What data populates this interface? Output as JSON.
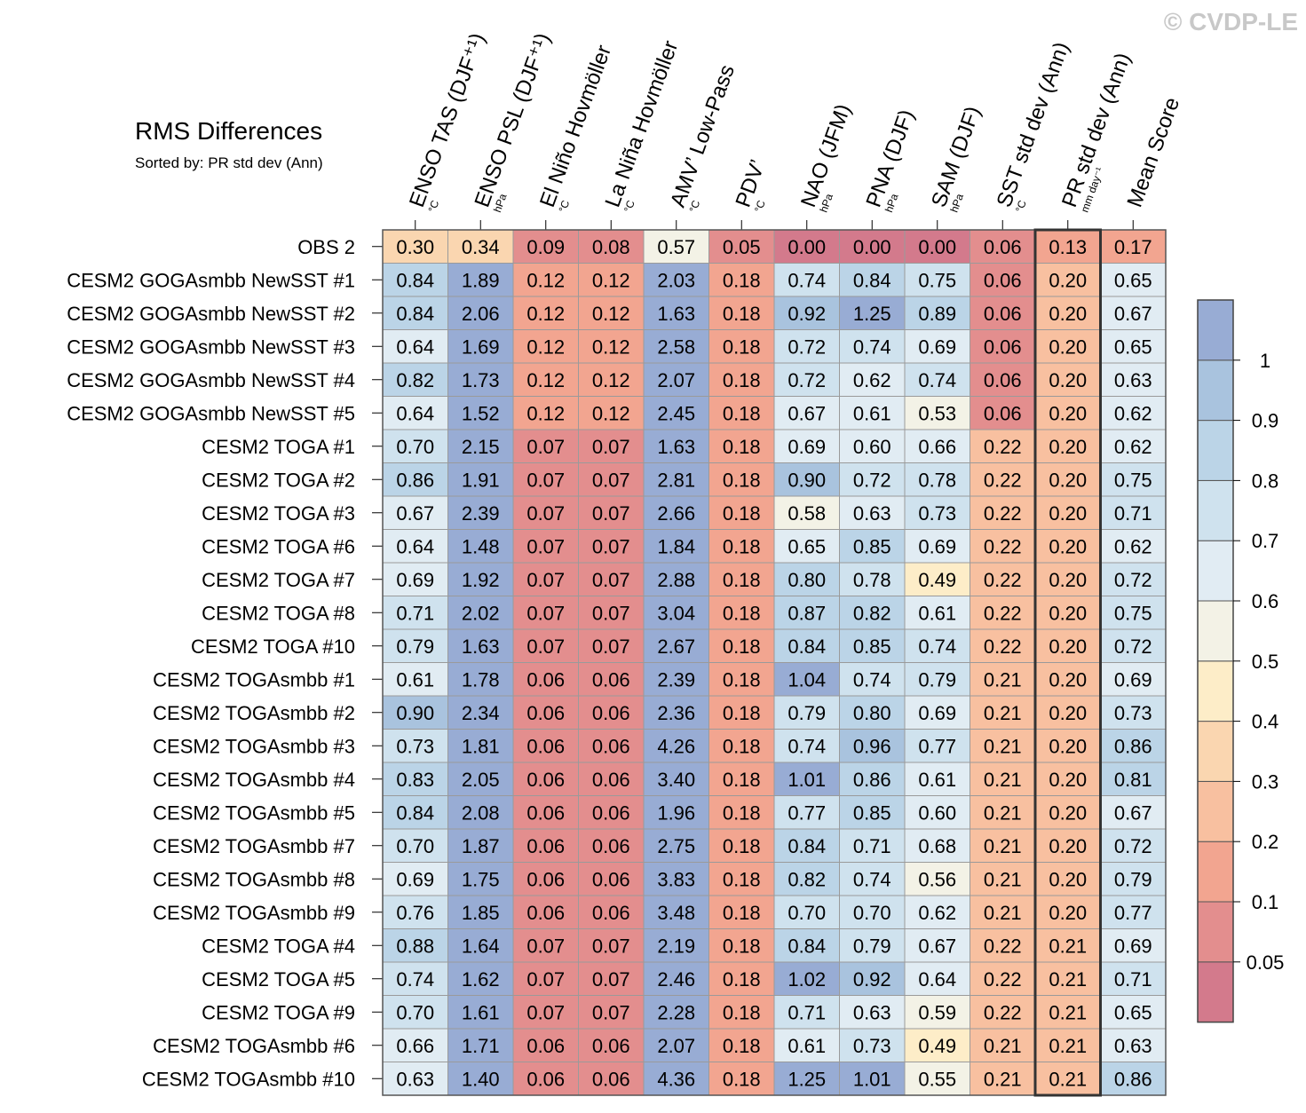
{
  "watermark": "© CVDP-LE",
  "chart_data": {
    "type": "heatmap",
    "title": "RMS Differences",
    "subtitle": "Sorted by: PR std dev (Ann)",
    "columns": [
      {
        "label": "ENSO TAS (DJF⁺¹)",
        "unit": "°C"
      },
      {
        "label": "ENSO PSL (DJF⁺¹)",
        "unit": "hPa"
      },
      {
        "label": "El Niño Hovmöller",
        "unit": "°C"
      },
      {
        "label": "La Niña Hovmöller",
        "unit": "°C"
      },
      {
        "label": "AMV’ Low-Pass",
        "unit": "°C"
      },
      {
        "label": "PDV’",
        "unit": "°C"
      },
      {
        "label": "NAO (JFM)",
        "unit": "hPa"
      },
      {
        "label": "PNA (DJF)",
        "unit": "hPa"
      },
      {
        "label": "SAM (DJF)",
        "unit": "hPa"
      },
      {
        "label": "SST std dev (Ann)",
        "unit": "°C"
      },
      {
        "label": "PR std dev (Ann)",
        "unit": "mm day⁻¹"
      },
      {
        "label": "Mean Score",
        "unit": ""
      }
    ],
    "highlight_column": 10,
    "rows": [
      "OBS 2",
      "CESM2 GOGAsmbb NewSST #1",
      "CESM2 GOGAsmbb NewSST #2",
      "CESM2 GOGAsmbb NewSST #3",
      "CESM2 GOGAsmbb NewSST #4",
      "CESM2 GOGAsmbb NewSST #5",
      "CESM2 TOGA #1",
      "CESM2 TOGA #2",
      "CESM2 TOGA #3",
      "CESM2 TOGA #6",
      "CESM2 TOGA #7",
      "CESM2 TOGA #8",
      "CESM2 TOGA #10",
      "CESM2 TOGAsmbb #1",
      "CESM2 TOGAsmbb #2",
      "CESM2 TOGAsmbb #3",
      "CESM2 TOGAsmbb #4",
      "CESM2 TOGAsmbb #5",
      "CESM2 TOGAsmbb #7",
      "CESM2 TOGAsmbb #8",
      "CESM2 TOGAsmbb #9",
      "CESM2 TOGA #4",
      "CESM2 TOGA #5",
      "CESM2 TOGA #9",
      "CESM2 TOGAsmbb #6",
      "CESM2 TOGAsmbb #10"
    ],
    "values": [
      [
        "0.30",
        "0.34",
        "0.09",
        "0.08",
        "0.57",
        "0.05",
        "0.00",
        "0.00",
        "0.00",
        "0.06",
        "0.13",
        "0.17"
      ],
      [
        "0.84",
        "1.89",
        "0.12",
        "0.12",
        "2.03",
        "0.18",
        "0.74",
        "0.84",
        "0.75",
        "0.06",
        "0.20",
        "0.65"
      ],
      [
        "0.84",
        "2.06",
        "0.12",
        "0.12",
        "1.63",
        "0.18",
        "0.92",
        "1.25",
        "0.89",
        "0.06",
        "0.20",
        "0.67"
      ],
      [
        "0.64",
        "1.69",
        "0.12",
        "0.12",
        "2.58",
        "0.18",
        "0.72",
        "0.74",
        "0.69",
        "0.06",
        "0.20",
        "0.65"
      ],
      [
        "0.82",
        "1.73",
        "0.12",
        "0.12",
        "2.07",
        "0.18",
        "0.72",
        "0.62",
        "0.74",
        "0.06",
        "0.20",
        "0.63"
      ],
      [
        "0.64",
        "1.52",
        "0.12",
        "0.12",
        "2.45",
        "0.18",
        "0.67",
        "0.61",
        "0.53",
        "0.06",
        "0.20",
        "0.62"
      ],
      [
        "0.70",
        "2.15",
        "0.07",
        "0.07",
        "1.63",
        "0.18",
        "0.69",
        "0.60",
        "0.66",
        "0.22",
        "0.20",
        "0.62"
      ],
      [
        "0.86",
        "1.91",
        "0.07",
        "0.07",
        "2.81",
        "0.18",
        "0.90",
        "0.72",
        "0.78",
        "0.22",
        "0.20",
        "0.75"
      ],
      [
        "0.67",
        "2.39",
        "0.07",
        "0.07",
        "2.66",
        "0.18",
        "0.58",
        "0.63",
        "0.73",
        "0.22",
        "0.20",
        "0.71"
      ],
      [
        "0.64",
        "1.48",
        "0.07",
        "0.07",
        "1.84",
        "0.18",
        "0.65",
        "0.85",
        "0.69",
        "0.22",
        "0.20",
        "0.62"
      ],
      [
        "0.69",
        "1.92",
        "0.07",
        "0.07",
        "2.88",
        "0.18",
        "0.80",
        "0.78",
        "0.49",
        "0.22",
        "0.20",
        "0.72"
      ],
      [
        "0.71",
        "2.02",
        "0.07",
        "0.07",
        "3.04",
        "0.18",
        "0.87",
        "0.82",
        "0.61",
        "0.22",
        "0.20",
        "0.75"
      ],
      [
        "0.79",
        "1.63",
        "0.07",
        "0.07",
        "2.67",
        "0.18",
        "0.84",
        "0.85",
        "0.74",
        "0.22",
        "0.20",
        "0.72"
      ],
      [
        "0.61",
        "1.78",
        "0.06",
        "0.06",
        "2.39",
        "0.18",
        "1.04",
        "0.74",
        "0.79",
        "0.21",
        "0.20",
        "0.69"
      ],
      [
        "0.90",
        "2.34",
        "0.06",
        "0.06",
        "2.36",
        "0.18",
        "0.79",
        "0.80",
        "0.69",
        "0.21",
        "0.20",
        "0.73"
      ],
      [
        "0.73",
        "1.81",
        "0.06",
        "0.06",
        "4.26",
        "0.18",
        "0.74",
        "0.96",
        "0.77",
        "0.21",
        "0.20",
        "0.86"
      ],
      [
        "0.83",
        "2.05",
        "0.06",
        "0.06",
        "3.40",
        "0.18",
        "1.01",
        "0.86",
        "0.61",
        "0.21",
        "0.20",
        "0.81"
      ],
      [
        "0.84",
        "2.08",
        "0.06",
        "0.06",
        "1.96",
        "0.18",
        "0.77",
        "0.85",
        "0.60",
        "0.21",
        "0.20",
        "0.67"
      ],
      [
        "0.70",
        "1.87",
        "0.06",
        "0.06",
        "2.75",
        "0.18",
        "0.84",
        "0.71",
        "0.68",
        "0.21",
        "0.20",
        "0.72"
      ],
      [
        "0.69",
        "1.75",
        "0.06",
        "0.06",
        "3.83",
        "0.18",
        "0.82",
        "0.74",
        "0.56",
        "0.21",
        "0.20",
        "0.79"
      ],
      [
        "0.76",
        "1.85",
        "0.06",
        "0.06",
        "3.48",
        "0.18",
        "0.70",
        "0.70",
        "0.62",
        "0.21",
        "0.20",
        "0.77"
      ],
      [
        "0.88",
        "1.64",
        "0.07",
        "0.07",
        "2.19",
        "0.18",
        "0.84",
        "0.79",
        "0.67",
        "0.22",
        "0.21",
        "0.69"
      ],
      [
        "0.74",
        "1.62",
        "0.07",
        "0.07",
        "2.46",
        "0.18",
        "1.02",
        "0.92",
        "0.64",
        "0.22",
        "0.21",
        "0.71"
      ],
      [
        "0.70",
        "1.61",
        "0.07",
        "0.07",
        "2.28",
        "0.18",
        "0.71",
        "0.63",
        "0.59",
        "0.22",
        "0.21",
        "0.65"
      ],
      [
        "0.66",
        "1.71",
        "0.06",
        "0.06",
        "2.07",
        "0.18",
        "0.61",
        "0.73",
        "0.49",
        "0.21",
        "0.21",
        "0.63"
      ],
      [
        "0.63",
        "1.40",
        "0.06",
        "0.06",
        "4.36",
        "0.18",
        "1.25",
        "1.01",
        "0.55",
        "0.21",
        "0.21",
        "0.86"
      ]
    ],
    "colorbar": {
      "boundaries": [
        0.05,
        0.1,
        0.2,
        0.3,
        0.4,
        0.5,
        0.6,
        0.7,
        0.8,
        0.9,
        1
      ],
      "labels": [
        "0.05",
        "0.1",
        "0.2",
        "0.3",
        "0.4",
        "0.5",
        "0.6",
        "0.7",
        "0.8",
        "0.9",
        "1"
      ],
      "colors": [
        "#d37a8c",
        "#e38e8e",
        "#f2a590",
        "#f8c0a0",
        "#fad6b0",
        "#fdedc8",
        "#f3f2e6",
        "#e1ecf3",
        "#cfe2ee",
        "#bbd4e7",
        "#a9c3de",
        "#98acd4"
      ]
    }
  }
}
